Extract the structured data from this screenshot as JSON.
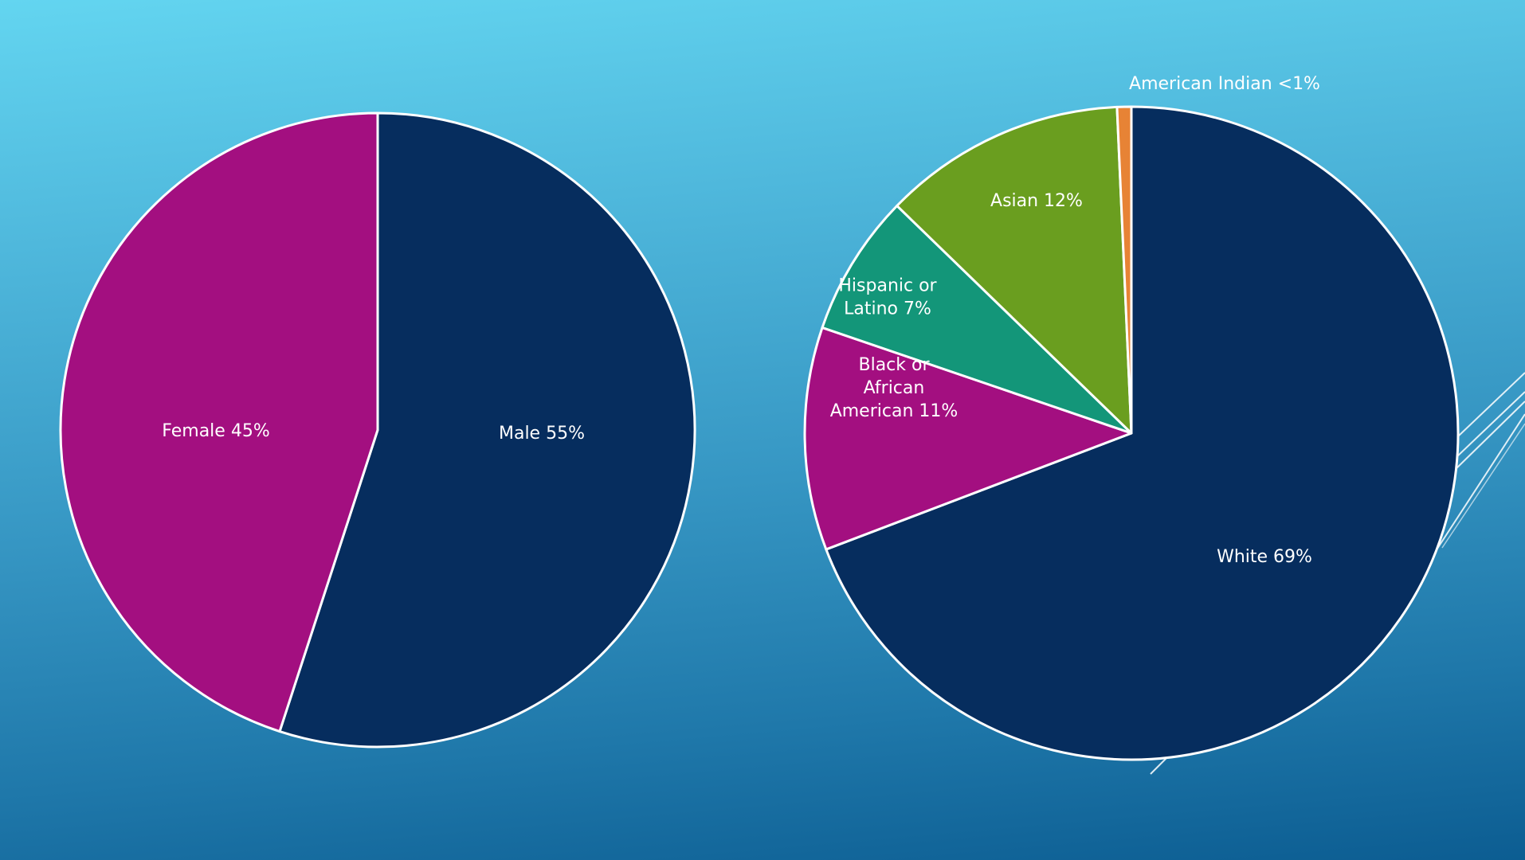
{
  "chart_data": [
    {
      "type": "pie",
      "categories": [
        "Male",
        "Female"
      ],
      "values": [
        55,
        45
      ],
      "labels": [
        "Male 55%",
        "Female 45%"
      ],
      "colors": [
        "#062d5e",
        "#a30f80"
      ]
    },
    {
      "type": "pie",
      "categories": [
        "White",
        "Black or African American",
        "Hispanic or Latino",
        "Asian",
        "American Indian"
      ],
      "values": [
        69,
        11,
        7,
        12,
        0.7
      ],
      "labels": [
        [
          "White 69%"
        ],
        [
          "Black or",
          "African",
          "American 11%"
        ],
        [
          "Hispanic or",
          "Latino 7%"
        ],
        [
          "Asian 12%"
        ],
        [
          "American Indian <1%"
        ]
      ],
      "colors": [
        "#062d5e",
        "#a30f80",
        "#139679",
        "#6a9e1f",
        "#e78335"
      ]
    }
  ],
  "style": {
    "background_top": "#63d5f0",
    "background_bottom": "#0c5d92",
    "slice_border": "#ffffff",
    "label_color": "#ffffff"
  }
}
